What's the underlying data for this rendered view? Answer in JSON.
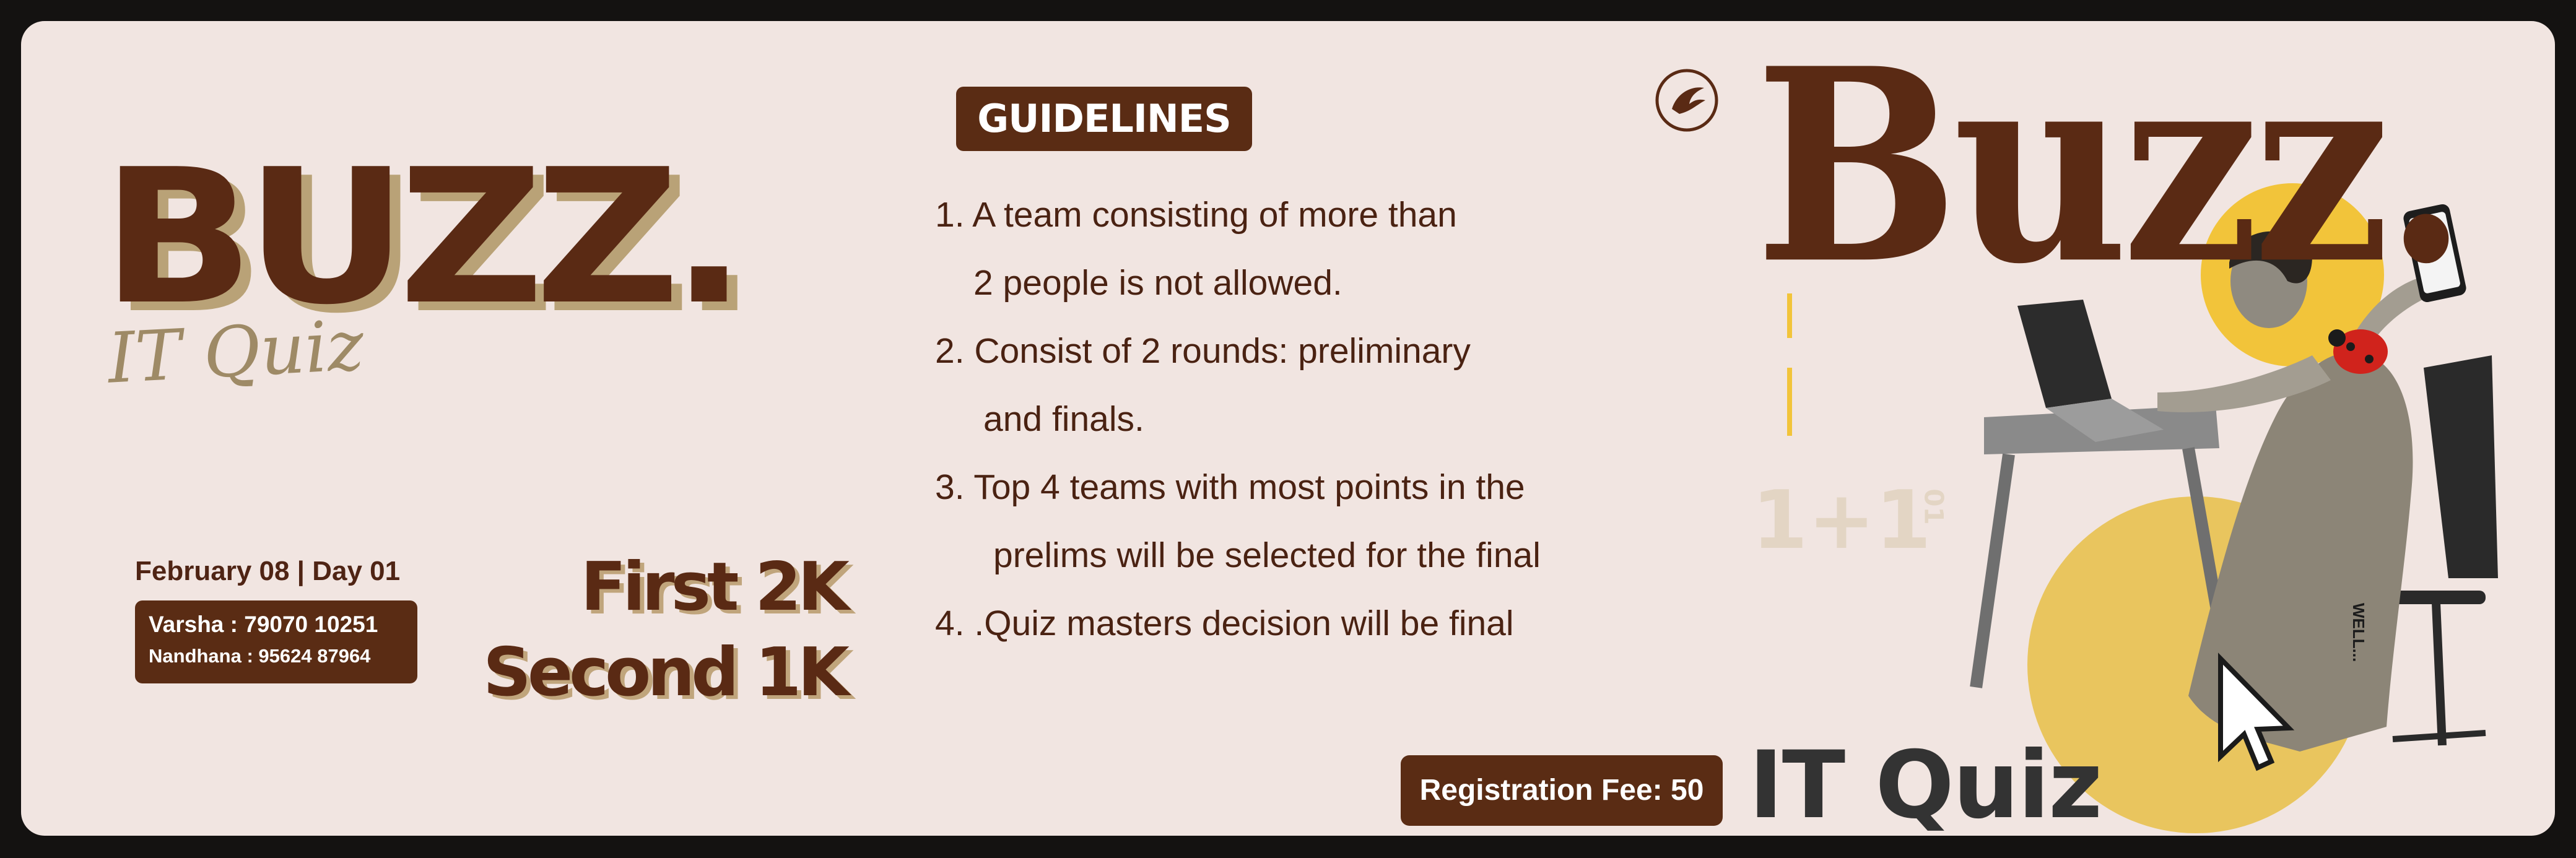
{
  "poster": {
    "title_left": "BUZZ.",
    "subtitle": "IT Quiz",
    "date": "February 08 | Day 01",
    "contacts": [
      "Varsha : 79070 10251",
      "Nandhana : 95624 87964"
    ],
    "prizes": [
      "First 2K",
      "Second 1K"
    ],
    "guidelines_heading": "GUIDELINES",
    "guidelines": {
      "line1": "1. A team consisting of more than",
      "line2": "2 people is not allowed.",
      "line3": "2. Consist of 2 rounds: preliminary",
      "line4": "and finals.",
      "line5": "3. Top 4 teams with most points in the",
      "line6": "prelims will be selected for the final",
      "line7": "4. .Quiz masters decision will be final"
    },
    "registration_fee": "Registration Fee: 50",
    "title_right": "Buzz.",
    "bottom_title": "IT Quiz",
    "background_marks": [
      "1+1",
      "01",
      "WELL..."
    ]
  },
  "colors": {
    "brown": "#5a2a14",
    "cream": "#f1e5e1",
    "gold": "#f2c43a",
    "tan_shadow": "#b9a277",
    "dark_text": "#333333"
  },
  "icons": {
    "logo": "bird-emblem-icon",
    "cursor": "mouse-pointer-icon",
    "ladybug": "ladybug-icon",
    "phone": "smartphone-icon"
  }
}
